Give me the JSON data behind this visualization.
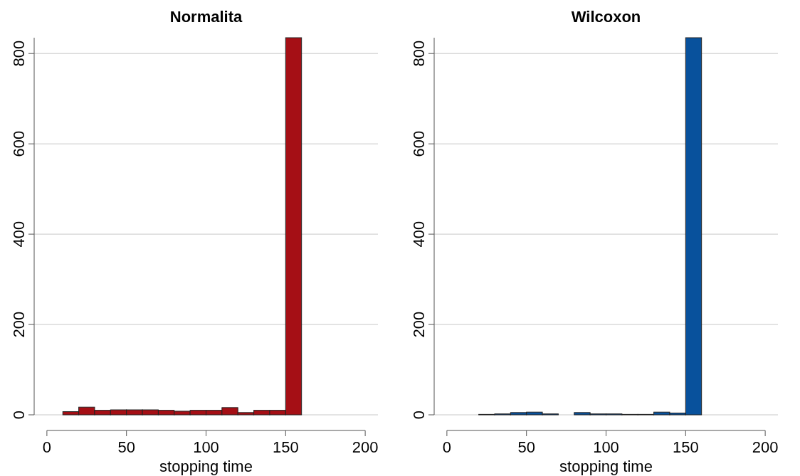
{
  "chart_data": [
    {
      "type": "histogram",
      "title": "Normalita",
      "xlabel": "stopping time",
      "bins": [
        10,
        20,
        30,
        40,
        50,
        60,
        70,
        80,
        90,
        100,
        110,
        120,
        130,
        140,
        150,
        160
      ],
      "values": [
        7,
        17,
        10,
        11,
        11,
        11,
        10,
        8,
        10,
        10,
        16,
        5,
        10,
        10,
        835
      ],
      "color": "#a50f15",
      "xlim": [
        -8,
        208
      ],
      "xticks": [
        0,
        50,
        100,
        150,
        200
      ],
      "ylim": [
        0,
        835
      ],
      "yticks": [
        0,
        200,
        400,
        600,
        800
      ],
      "grid": "y"
    },
    {
      "type": "histogram",
      "title": "Wilcoxon",
      "xlabel": "stopping time",
      "bins": [
        20,
        30,
        40,
        50,
        60,
        70,
        80,
        90,
        100,
        110,
        120,
        130,
        140,
        150,
        160
      ],
      "values": [
        1,
        2,
        5,
        6,
        2,
        0,
        5,
        2,
        2,
        1,
        1,
        6,
        4,
        835
      ],
      "color": "#08519c",
      "xlim": [
        -8,
        208
      ],
      "xticks": [
        0,
        50,
        100,
        150,
        200
      ],
      "ylim": [
        0,
        835
      ],
      "yticks": [
        0,
        200,
        400,
        600,
        800
      ],
      "grid": "y"
    }
  ]
}
